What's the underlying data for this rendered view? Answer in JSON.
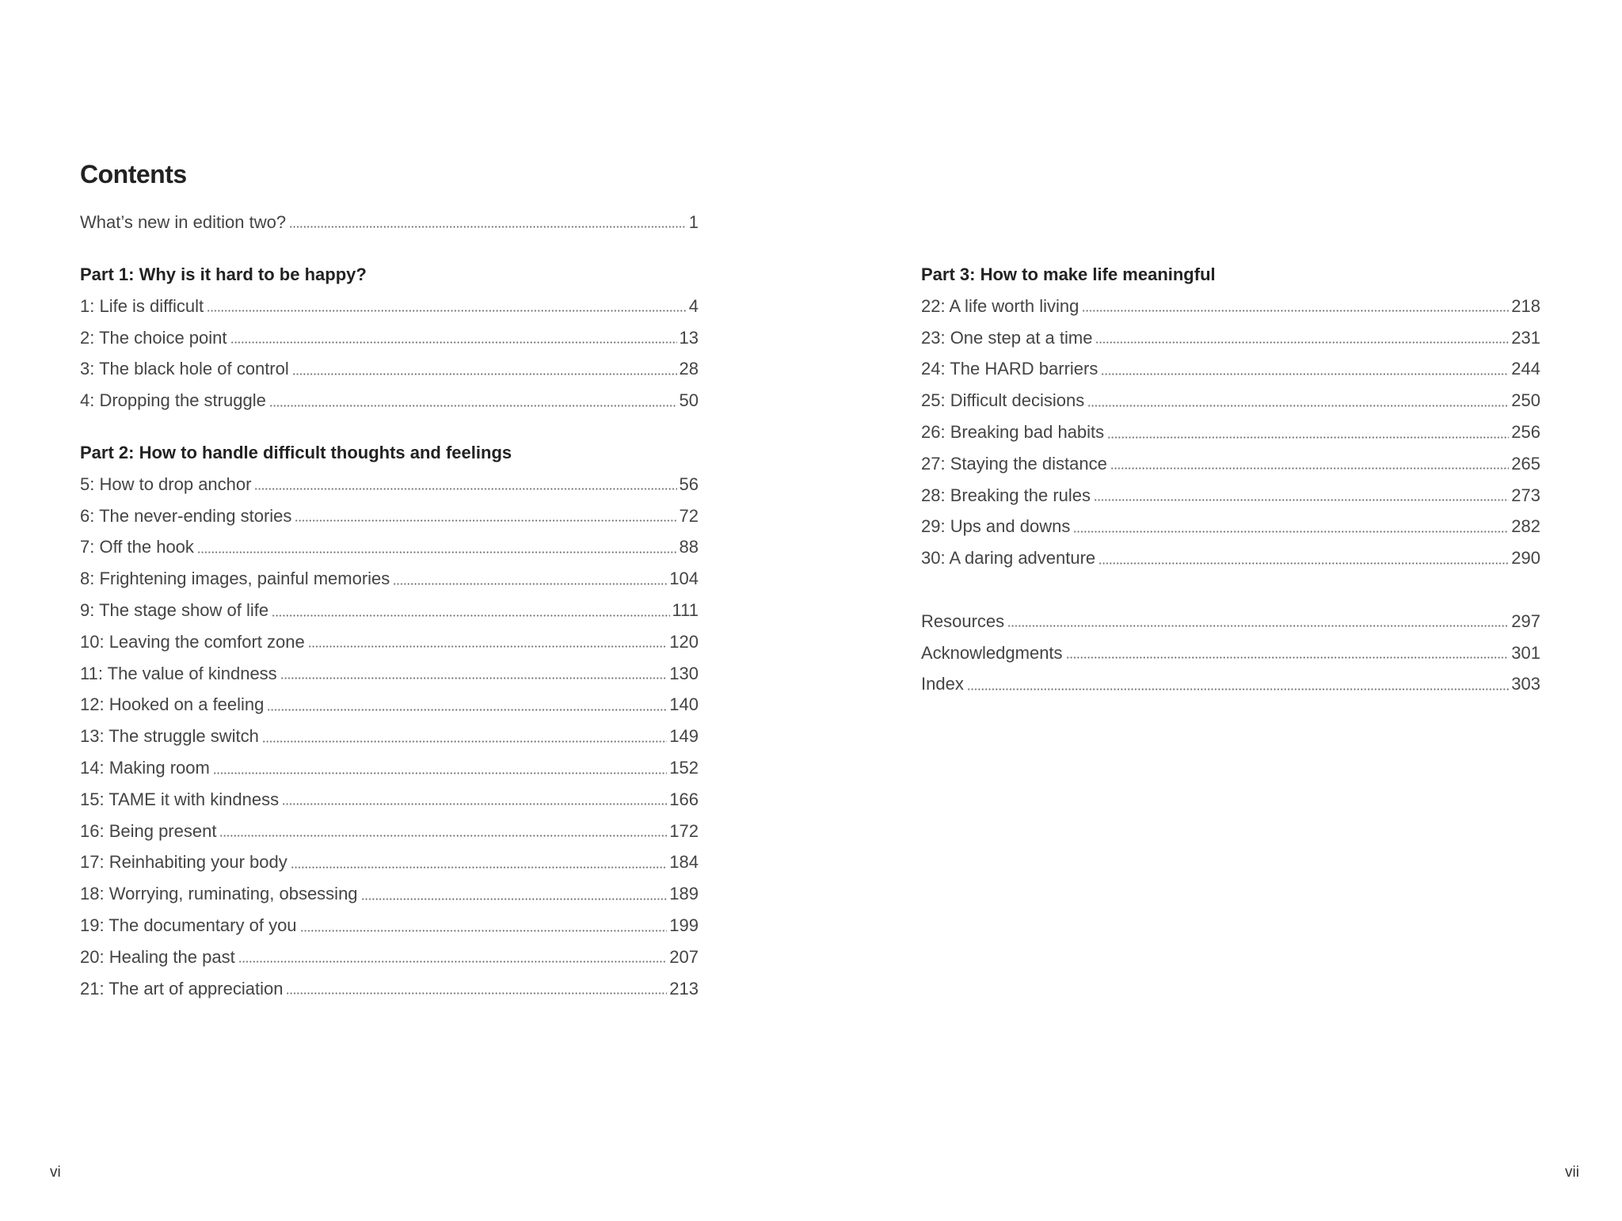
{
  "title": "Contents",
  "front": [
    {
      "label": "What’s new in edition two?",
      "page": "1"
    }
  ],
  "parts": [
    {
      "heading": "Part 1: Why is it hard to be happy?",
      "entries": [
        {
          "label": "1: Life is difficult",
          "page": "4"
        },
        {
          "label": "2: The choice point",
          "page": "13"
        },
        {
          "label": "3: The black hole of control",
          "page": "28"
        },
        {
          "label": "4: Dropping the struggle",
          "page": "50"
        }
      ]
    },
    {
      "heading": "Part 2: How to handle difficult thoughts and feelings",
      "entries": [
        {
          "label": "5: How to drop anchor",
          "page": "56"
        },
        {
          "label": "6: The never-ending stories",
          "page": "72"
        },
        {
          "label": "7: Off the hook",
          "page": "88"
        },
        {
          "label": "8: Frightening images, painful memories",
          "page": "104"
        },
        {
          "label": "9: The stage show of life",
          "page": "111"
        },
        {
          "label": "10: Leaving the comfort zone",
          "page": "120"
        },
        {
          "label": "11: The value of kindness",
          "page": "130"
        },
        {
          "label": "12: Hooked on a feeling",
          "page": "140"
        },
        {
          "label": "13: The struggle switch",
          "page": "149"
        },
        {
          "label": "14: Making room",
          "page": "152"
        },
        {
          "label": "15: TAME it with kindness",
          "page": "166"
        },
        {
          "label": "16: Being present",
          "page": "172"
        },
        {
          "label": "17: Reinhabiting your body",
          "page": "184"
        },
        {
          "label": "18: Worrying, ruminating, obsessing",
          "page": "189"
        },
        {
          "label": "19: The documentary of you",
          "page": "199"
        },
        {
          "label": "20: Healing the past",
          "page": "207"
        },
        {
          "label": "21: The art of appreciation",
          "page": "213"
        }
      ]
    },
    {
      "heading": "Part 3: How to make life meaningful",
      "entries": [
        {
          "label": "22: A life worth living",
          "page": "218"
        },
        {
          "label": "23: One step at a time",
          "page": "231"
        },
        {
          "label": "24: The HARD barriers",
          "page": "244"
        },
        {
          "label": "25: Difficult decisions",
          "page": "250"
        },
        {
          "label": "26: Breaking bad habits",
          "page": "256"
        },
        {
          "label": "27: Staying the distance",
          "page": "265"
        },
        {
          "label": "28: Breaking the rules",
          "page": "273"
        },
        {
          "label": "29: Ups and downs",
          "page": "282"
        },
        {
          "label": "30: A daring adventure",
          "page": "290"
        }
      ]
    }
  ],
  "back": [
    {
      "label": "Resources",
      "page": "297"
    },
    {
      "label": "Acknowledgments",
      "page": "301"
    },
    {
      "label": "Index",
      "page": "303"
    }
  ],
  "folios": {
    "left": "vi",
    "right": "vii"
  }
}
